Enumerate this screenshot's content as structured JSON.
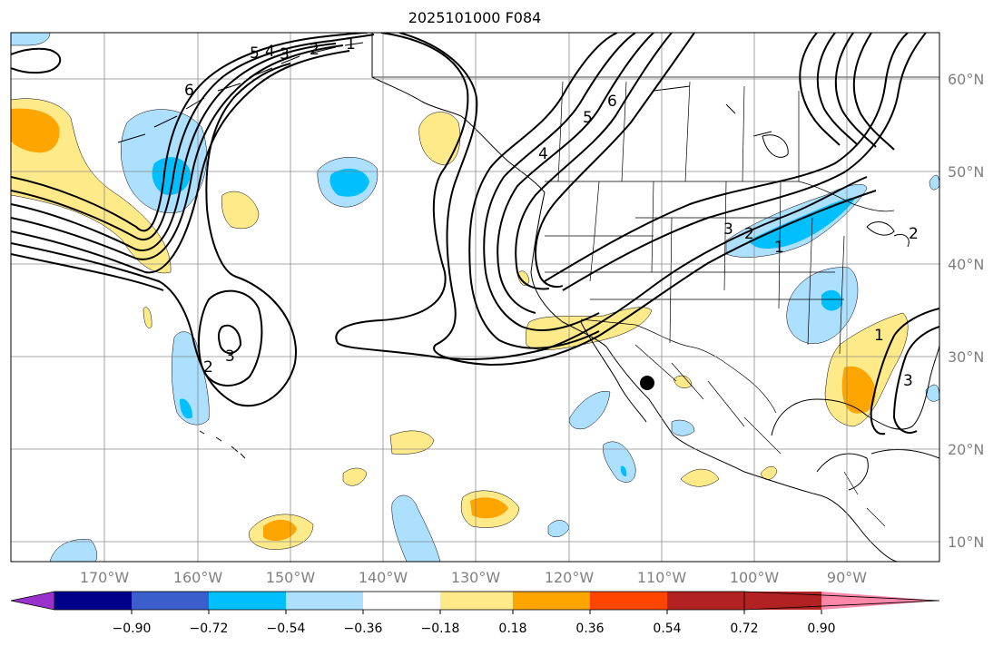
{
  "title": "2025101000 F084",
  "lat_labels": [
    "60°N",
    "50°N",
    "40°N",
    "30°N",
    "20°N",
    "10°N"
  ],
  "lon_labels": [
    "170°W",
    "160°W",
    "150°W",
    "140°W",
    "130°W",
    "120°W",
    "110°W",
    "100°W",
    "90°W"
  ],
  "colorbar": {
    "colors": [
      "#9932CC",
      "#00008B",
      "#3A5FCD",
      "#00BFFF",
      "#ADDFFF",
      "#FFFFFF",
      "#FFEA8A",
      "#FFA500",
      "#FF4500",
      "#B22222",
      "#FF88AA"
    ],
    "labels": [
      "−0.90",
      "−0.72",
      "−0.54",
      "−0.36",
      "−0.18",
      "0.18",
      "0.36",
      "0.54",
      "0.72",
      "0.90"
    ]
  },
  "contour_labels": [
    "1",
    "2",
    "3",
    "4",
    "5",
    "6",
    "3",
    "2",
    "1",
    "2",
    "3",
    "5",
    "6",
    "4",
    "3",
    "2",
    "1"
  ],
  "style": {
    "coast": "#000000",
    "grid": "#808080"
  }
}
